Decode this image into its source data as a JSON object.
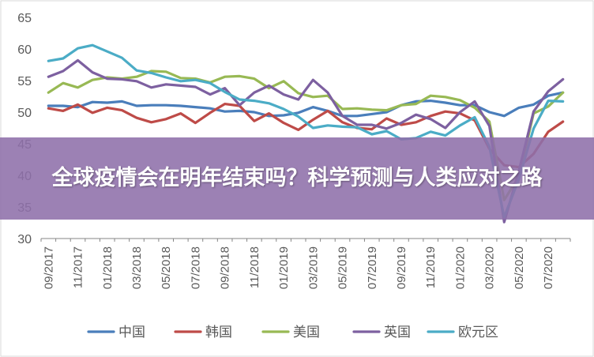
{
  "banner": {
    "title": "全球疫情会在明年结束吗？科学预测与人类应对之路"
  },
  "chart_data": {
    "type": "line",
    "title": "",
    "xlabel": "",
    "ylabel": "",
    "ylim": [
      30,
      65
    ],
    "yticks": [
      30,
      35,
      40,
      45,
      50,
      55,
      60,
      65
    ],
    "grid": false,
    "legend_position": "bottom",
    "x": [
      "09/2017",
      "10/2017",
      "11/2017",
      "12/2017",
      "01/2018",
      "02/2018",
      "03/2018",
      "04/2018",
      "05/2018",
      "06/2018",
      "07/2018",
      "08/2018",
      "09/2018",
      "10/2018",
      "11/2018",
      "12/2018",
      "01/2019",
      "02/2019",
      "03/2019",
      "04/2019",
      "05/2019",
      "06/2019",
      "07/2019",
      "08/2019",
      "09/2019",
      "10/2019",
      "11/2019",
      "12/2019",
      "01/2020",
      "02/2020",
      "03/2020",
      "04/2020",
      "05/2020",
      "06/2020",
      "07/2020",
      "08/2020"
    ],
    "x_tick_labels": [
      "09/2017",
      "11/2017",
      "01/2018",
      "03/2018",
      "05/2018",
      "07/2018",
      "09/2018",
      "11/2018",
      "01/2019",
      "03/2019",
      "05/2019",
      "07/2019",
      "09/2019",
      "11/2019",
      "01/2020",
      "03/2020",
      "05/2020",
      "07/2020"
    ],
    "series": [
      {
        "name": "中国",
        "color": "#4a7ebb",
        "values": [
          51.0,
          51.0,
          50.8,
          51.6,
          51.5,
          51.7,
          51.0,
          51.1,
          51.1,
          51.0,
          50.8,
          50.6,
          50.1,
          50.2,
          50.0,
          49.4,
          49.5,
          49.9,
          50.8,
          50.2,
          49.4,
          49.4,
          49.7,
          50.0,
          51.1,
          51.7,
          51.8,
          51.5,
          51.1,
          51.1,
          50.0,
          49.4,
          50.7,
          51.2,
          52.6,
          53.1
        ]
      },
      {
        "name": "韩国",
        "color": "#be4b48",
        "values": [
          50.6,
          50.2,
          51.2,
          49.9,
          50.7,
          50.3,
          49.1,
          48.4,
          48.9,
          49.8,
          48.3,
          49.9,
          51.3,
          51.0,
          48.6,
          49.8,
          48.3,
          47.2,
          48.8,
          50.2,
          48.4,
          47.5,
          47.3,
          49.0,
          48.0,
          48.4,
          49.4,
          50.1,
          49.8,
          48.7,
          44.2,
          41.6,
          41.3,
          43.4,
          46.9,
          48.5
        ]
      },
      {
        "name": "美国",
        "color": "#98b954",
        "values": [
          53.1,
          54.6,
          53.9,
          55.1,
          55.5,
          55.3,
          55.6,
          56.5,
          56.4,
          55.4,
          55.3,
          54.7,
          55.6,
          55.7,
          55.3,
          53.8,
          54.9,
          53.0,
          52.4,
          52.6,
          50.5,
          50.6,
          50.4,
          50.3,
          51.1,
          51.3,
          52.6,
          52.4,
          51.9,
          50.7,
          48.5,
          36.1,
          39.8,
          49.8,
          50.9,
          53.1
        ]
      },
      {
        "name": "英国",
        "color": "#7d60a0",
        "values": [
          55.6,
          56.5,
          58.2,
          56.3,
          55.3,
          55.2,
          54.9,
          53.9,
          54.4,
          54.2,
          54.0,
          52.8,
          53.8,
          51.1,
          53.1,
          54.2,
          52.8,
          52.0,
          55.1,
          53.1,
          49.4,
          48.0,
          48.0,
          47.4,
          48.3,
          49.6,
          48.9,
          47.5,
          50.0,
          51.7,
          47.8,
          32.6,
          40.7,
          50.1,
          53.3,
          55.2
        ]
      },
      {
        "name": "欧元区",
        "color": "#4bacc6",
        "values": [
          58.1,
          58.5,
          60.1,
          60.6,
          59.6,
          58.6,
          56.6,
          56.2,
          55.5,
          54.9,
          55.1,
          54.6,
          53.2,
          52.0,
          51.8,
          51.4,
          50.5,
          49.3,
          47.5,
          47.9,
          47.7,
          47.6,
          46.5,
          47.0,
          45.7,
          45.9,
          46.9,
          46.3,
          47.9,
          49.2,
          44.5,
          33.4,
          39.4,
          47.4,
          51.8,
          51.7
        ]
      }
    ]
  }
}
